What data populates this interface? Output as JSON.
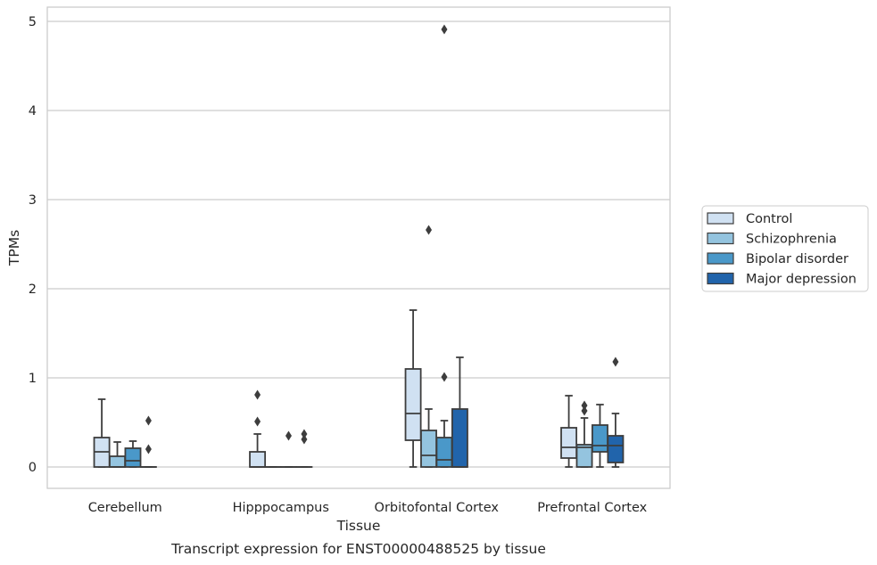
{
  "chart_data": {
    "type": "box",
    "title": "Transcript expression for ENST00000488525 by tissue",
    "xlabel": "Tissue",
    "ylabel": "TPMs",
    "ylim": [
      -0.23,
      5.15
    ],
    "yticks": [
      0,
      1,
      2,
      3,
      4,
      5
    ],
    "grid": "horizontal",
    "legend_position": "right",
    "categories": [
      "Cerebellum",
      "Hipppocampus",
      "Orbitofontal Cortex",
      "Prefrontal Cortex"
    ],
    "series": [
      {
        "name": "Control",
        "color": "#d0e1f2",
        "boxes": [
          {
            "min": 0,
            "q1": 0,
            "median": 0.17,
            "q3": 0.33,
            "max": 0.76,
            "outliers": []
          },
          {
            "min": 0,
            "q1": 0,
            "median": 0,
            "q3": 0.17,
            "max": 0.37,
            "outliers": [
              0.51,
              0.81
            ]
          },
          {
            "min": 0,
            "q1": 0.3,
            "median": 0.6,
            "q3": 1.1,
            "max": 1.76,
            "outliers": []
          },
          {
            "min": 0,
            "q1": 0.1,
            "median": 0.22,
            "q3": 0.44,
            "max": 0.8,
            "outliers": []
          }
        ]
      },
      {
        "name": "Schizophrenia",
        "color": "#94c4df",
        "boxes": [
          {
            "min": 0,
            "q1": 0,
            "median": 0,
            "q3": 0.12,
            "max": 0.28,
            "outliers": []
          },
          {
            "min": 0,
            "q1": 0,
            "median": 0,
            "q3": 0,
            "max": 0,
            "outliers": []
          },
          {
            "min": 0,
            "q1": 0,
            "median": 0.13,
            "q3": 0.41,
            "max": 0.65,
            "outliers": [
              2.66
            ]
          },
          {
            "min": 0,
            "q1": 0,
            "median": 0.22,
            "q3": 0.25,
            "max": 0.55,
            "outliers": [
              0.63,
              0.69
            ]
          }
        ]
      },
      {
        "name": "Bipolar disorder",
        "color": "#4a98c9",
        "boxes": [
          {
            "min": 0,
            "q1": 0,
            "median": 0.07,
            "q3": 0.21,
            "max": 0.29,
            "outliers": []
          },
          {
            "min": 0,
            "q1": 0,
            "median": 0,
            "q3": 0,
            "max": 0,
            "outliers": [
              0.35
            ]
          },
          {
            "min": 0,
            "q1": 0,
            "median": 0.08,
            "q3": 0.33,
            "max": 0.52,
            "outliers": [
              1.01,
              4.91
            ]
          },
          {
            "min": 0,
            "q1": 0.17,
            "median": 0.24,
            "q3": 0.47,
            "max": 0.7,
            "outliers": []
          }
        ]
      },
      {
        "name": "Major depression",
        "color": "#2164ab",
        "boxes": [
          {
            "min": 0,
            "q1": 0,
            "median": 0,
            "q3": 0,
            "max": 0,
            "outliers": [
              0.2,
              0.52
            ]
          },
          {
            "min": 0,
            "q1": 0,
            "median": 0,
            "q3": 0,
            "max": 0,
            "outliers": [
              0.31,
              0.37
            ]
          },
          {
            "min": 0,
            "q1": 0,
            "median": 0,
            "q3": 0.65,
            "max": 1.23,
            "outliers": []
          },
          {
            "min": 0,
            "q1": 0.05,
            "median": 0.24,
            "q3": 0.35,
            "max": 0.6,
            "outliers": [
              1.18
            ]
          }
        ]
      }
    ]
  }
}
